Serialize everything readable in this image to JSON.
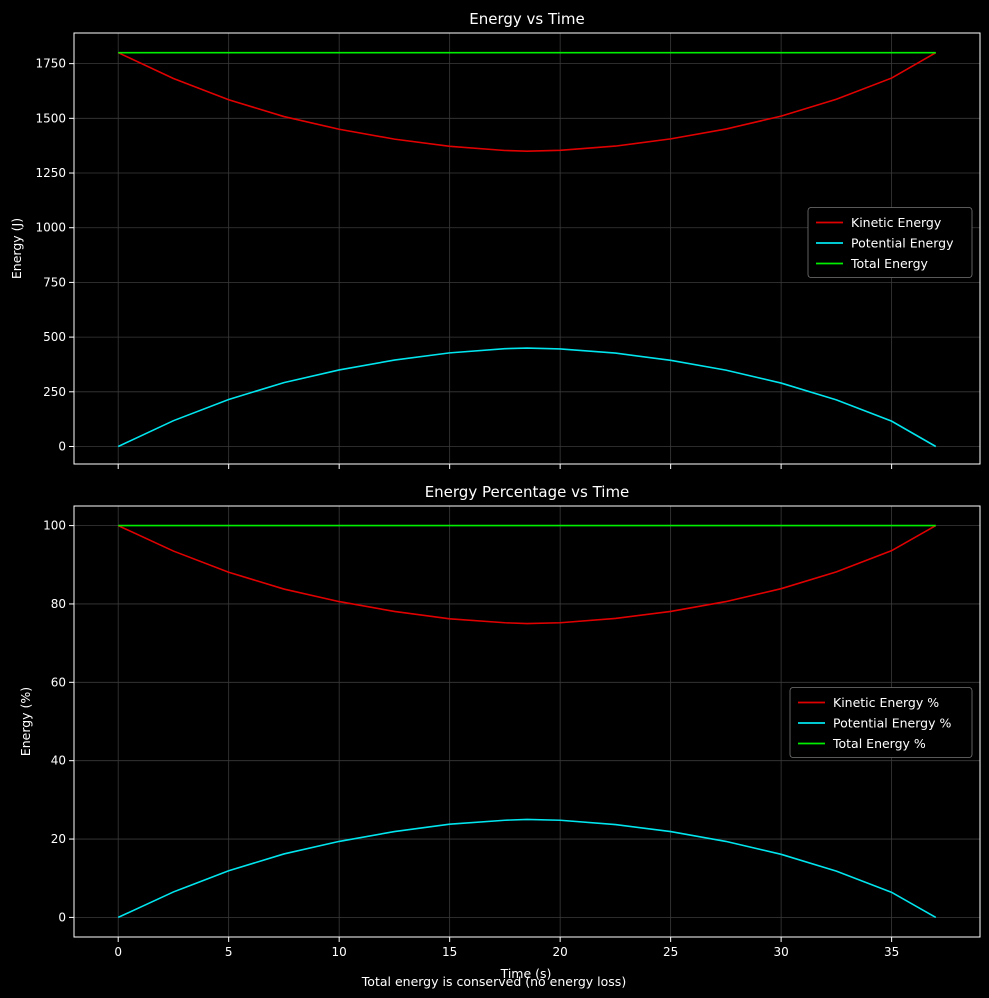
{
  "footnote": "Total energy is conserved (no energy loss)",
  "colors": {
    "background": "#000000",
    "kinetic": "#e00000",
    "potential": "#00e5ee",
    "total": "#00ee00",
    "grid": "#3a3a3a"
  },
  "chart_data": [
    {
      "type": "line",
      "title": "Energy vs Time",
      "xlabel": "",
      "ylabel": "Energy (J)",
      "xlim": [
        -2,
        39
      ],
      "ylim": [
        -80,
        1890
      ],
      "xticks": [
        0,
        5,
        10,
        15,
        20,
        25,
        30,
        35
      ],
      "show_xtick_labels": false,
      "yticks": [
        0,
        250,
        500,
        750,
        1000,
        1250,
        1500,
        1750
      ],
      "grid": true,
      "legend": "center-right",
      "x": [
        0,
        2.5,
        5,
        7.5,
        10,
        12.5,
        15,
        17.5,
        18.5,
        20,
        22.5,
        25,
        27.5,
        30,
        32.5,
        35,
        37
      ],
      "series": [
        {
          "name": "Kinetic Energy",
          "color": "#e00000",
          "values": [
            1800,
            1682,
            1585,
            1508,
            1450,
            1405,
            1372,
            1353,
            1350,
            1354,
            1373,
            1406,
            1451,
            1510,
            1587,
            1684,
            1800
          ]
        },
        {
          "name": "Potential Energy",
          "color": "#00e5ee",
          "values": [
            0,
            118,
            215,
            292,
            350,
            395,
            428,
            447,
            450,
            446,
            427,
            394,
            349,
            290,
            213,
            116,
            0
          ]
        },
        {
          "name": "Total Energy",
          "color": "#00ee00",
          "values": [
            1800,
            1800,
            1800,
            1800,
            1800,
            1800,
            1800,
            1800,
            1800,
            1800,
            1800,
            1800,
            1800,
            1800,
            1800,
            1800,
            1800
          ]
        }
      ]
    },
    {
      "type": "line",
      "title": "Energy Percentage vs Time",
      "xlabel": "Time (s)",
      "ylabel": "Energy (%)",
      "xlim": [
        -2,
        39
      ],
      "ylim": [
        -5,
        105
      ],
      "xticks": [
        0,
        5,
        10,
        15,
        20,
        25,
        30,
        35
      ],
      "show_xtick_labels": true,
      "yticks": [
        0,
        20,
        40,
        60,
        80,
        100
      ],
      "grid": true,
      "legend": "center-right",
      "x": [
        0,
        2.5,
        5,
        7.5,
        10,
        12.5,
        15,
        17.5,
        18.5,
        20,
        22.5,
        25,
        27.5,
        30,
        32.5,
        35,
        37
      ],
      "series": [
        {
          "name": "Kinetic Energy %",
          "color": "#e00000",
          "values": [
            100,
            93.5,
            88.1,
            83.8,
            80.6,
            78.1,
            76.2,
            75.2,
            75,
            75.2,
            76.3,
            78.1,
            80.6,
            83.9,
            88.2,
            93.6,
            100
          ]
        },
        {
          "name": "Potential Energy %",
          "color": "#00e5ee",
          "values": [
            0,
            6.5,
            11.9,
            16.2,
            19.4,
            21.9,
            23.8,
            24.8,
            25,
            24.8,
            23.7,
            21.9,
            19.4,
            16.1,
            11.8,
            6.4,
            0
          ]
        },
        {
          "name": "Total Energy %",
          "color": "#00ee00",
          "values": [
            100,
            100,
            100,
            100,
            100,
            100,
            100,
            100,
            100,
            100,
            100,
            100,
            100,
            100,
            100,
            100,
            100
          ]
        }
      ]
    }
  ]
}
